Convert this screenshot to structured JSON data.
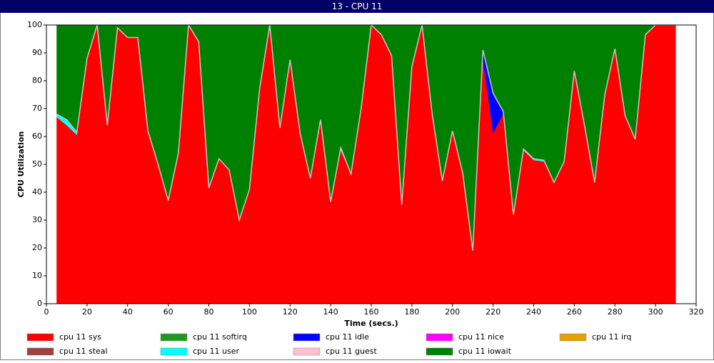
{
  "chart_data": {
    "type": "stacked_area",
    "title": "13 - CPU 11",
    "x_label": "Time (secs.)",
    "y_label": "CPU Utilization",
    "xlim": [
      0,
      320
    ],
    "xticks": [
      0,
      20,
      40,
      60,
      80,
      100,
      120,
      140,
      160,
      180,
      200,
      220,
      240,
      260,
      280,
      300,
      320
    ],
    "ylim": [
      0,
      100
    ],
    "yticks": [
      0,
      10,
      20,
      30,
      40,
      50,
      60,
      70,
      80,
      90,
      100
    ],
    "x": [
      5,
      10,
      15,
      20,
      25,
      30,
      35,
      40,
      45,
      50,
      55,
      60,
      65,
      70,
      75,
      80,
      85,
      90,
      95,
      100,
      105,
      110,
      115,
      120,
      125,
      130,
      135,
      140,
      145,
      150,
      155,
      160,
      165,
      170,
      175,
      180,
      185,
      190,
      195,
      200,
      205,
      210,
      215,
      220,
      225,
      230,
      235,
      240,
      245,
      250,
      255,
      260,
      265,
      270,
      275,
      280,
      285,
      290,
      295,
      300,
      305,
      310
    ],
    "series": [
      {
        "name": "cpu 11 sys",
        "color": "#ff0000",
        "values": [
          67,
          64,
          60.5,
          88,
          100,
          64,
          99,
          95.5,
          95.5,
          62,
          50,
          37,
          54,
          100,
          94,
          41.5,
          52,
          48,
          30,
          41,
          77,
          100,
          63,
          87.5,
          61,
          45,
          66,
          36.5,
          55,
          46.5,
          70,
          100,
          96.5,
          89,
          35.5,
          85,
          100,
          68,
          44,
          62,
          47,
          19,
          87,
          61,
          68,
          32,
          55,
          51.5,
          51,
          43.5,
          51,
          83.5,
          64,
          43.5,
          75,
          91.5,
          67.5,
          59,
          96.5,
          100,
          100,
          100
        ]
      },
      {
        "name": "cpu 11 softirq",
        "color": "#1f9a1f",
        "values": [
          0,
          0,
          0,
          0,
          0,
          0,
          0,
          0,
          0,
          0,
          0,
          0,
          0,
          0,
          0,
          0,
          0,
          0,
          0,
          0,
          0,
          0,
          0,
          0,
          0,
          0,
          0,
          0,
          0,
          0,
          0,
          0,
          0,
          0,
          0,
          0,
          0,
          0,
          0,
          0,
          0,
          0,
          0,
          0,
          0,
          0,
          0,
          0,
          0,
          0,
          0,
          0,
          0,
          0,
          0,
          0,
          0,
          0,
          0,
          0,
          0,
          0
        ]
      },
      {
        "name": "cpu 11 idle",
        "color": "#0000ff",
        "values": [
          0,
          0,
          0,
          0,
          0,
          0,
          0,
          0,
          0,
          0,
          0,
          0,
          0,
          0,
          0,
          0,
          0,
          0,
          0,
          0,
          0,
          0,
          0,
          0,
          0,
          0,
          0,
          0,
          0,
          0,
          0,
          0,
          0,
          0,
          0,
          0,
          0,
          0,
          0,
          0,
          0,
          0,
          4,
          14.5,
          1,
          0,
          0,
          0,
          0,
          0,
          0,
          0,
          0,
          0,
          0,
          0,
          0,
          0,
          0,
          0,
          0,
          0
        ]
      },
      {
        "name": "cpu 11 nice",
        "color": "#ff00ff",
        "values": [
          0,
          0,
          0,
          0,
          0,
          0,
          0,
          0,
          0,
          0,
          0,
          0,
          0,
          0,
          0,
          0,
          0,
          0,
          0,
          0,
          0,
          0,
          0,
          0,
          0,
          0,
          0,
          0,
          0,
          0,
          0,
          0,
          0,
          0,
          0,
          0,
          0,
          0,
          0,
          0,
          0,
          0,
          0,
          0,
          0,
          0,
          0,
          0,
          0,
          0,
          0,
          0,
          0,
          0,
          0,
          0,
          0,
          0,
          0,
          0,
          0,
          0
        ]
      },
      {
        "name": "cpu 11 irq",
        "color": "#e8a000",
        "values": [
          0,
          0,
          0,
          0,
          0,
          0,
          0,
          0,
          0,
          0,
          0,
          0,
          0,
          0,
          0,
          0,
          0,
          0,
          0,
          0,
          0,
          0,
          0,
          0,
          0,
          0,
          0,
          0,
          0,
          0,
          0,
          0,
          0,
          0,
          0,
          0,
          0,
          0,
          0,
          0,
          0,
          0,
          0,
          0,
          0,
          0,
          0,
          0,
          0,
          0,
          0,
          0,
          0,
          0,
          0,
          0,
          0,
          0,
          0,
          0,
          0,
          0
        ]
      },
      {
        "name": "cpu 11 steal",
        "color": "#a04040",
        "values": [
          0,
          0,
          0,
          0,
          0,
          0,
          0,
          0,
          0,
          0,
          0,
          0,
          0,
          0,
          0,
          0,
          0,
          0,
          0,
          0,
          0,
          0,
          0,
          0,
          0,
          0,
          0,
          0,
          0,
          0,
          0,
          0,
          0,
          0,
          0,
          0,
          0,
          0,
          0,
          0,
          0,
          0,
          0,
          0,
          0,
          0,
          0,
          0,
          0,
          0,
          0,
          0,
          0,
          0,
          0,
          0,
          0,
          0,
          0,
          0,
          0,
          0
        ]
      },
      {
        "name": "cpu 11 user",
        "color": "#00ffff",
        "values": [
          1,
          2,
          1,
          0,
          0,
          0,
          0,
          0,
          0,
          0,
          0,
          0,
          0,
          0,
          0,
          0,
          0,
          0,
          0,
          0,
          0,
          0,
          0,
          0,
          0,
          0,
          0,
          0,
          1,
          0,
          0,
          0,
          0,
          0,
          0,
          0,
          0,
          0,
          0,
          0,
          0,
          0,
          0,
          0,
          0,
          0,
          0.5,
          0.5,
          0.5,
          0,
          0,
          0,
          0,
          0,
          0,
          0,
          0,
          0,
          0,
          0,
          0,
          0
        ]
      },
      {
        "name": "cpu 11 guest",
        "color": "#ffc0cb",
        "values": [
          0,
          0,
          0,
          0,
          0,
          0,
          0,
          0,
          0,
          0,
          0,
          0,
          0,
          0,
          0,
          0,
          0,
          0,
          0,
          0,
          0,
          0,
          0,
          0,
          0,
          0,
          0,
          0,
          0,
          0,
          0,
          0,
          0,
          0,
          0,
          0,
          0,
          0,
          0,
          0,
          0,
          0,
          0,
          0,
          0,
          0,
          0,
          0,
          0,
          0,
          0,
          0,
          0,
          0,
          0,
          0,
          0,
          0,
          0,
          0,
          0,
          0
        ]
      },
      {
        "name": "cpu 11 iowait",
        "color": "#008000",
        "values": [
          32,
          34,
          38.5,
          12,
          0,
          36,
          1,
          4.5,
          4.5,
          38,
          50,
          63,
          46,
          0,
          6,
          58.5,
          48,
          52,
          70,
          59,
          23,
          0,
          37,
          12.5,
          39,
          55,
          34,
          63.5,
          44,
          53.5,
          30,
          0,
          3.5,
          11,
          64.5,
          15,
          0,
          32,
          56,
          38,
          53,
          81,
          9,
          24.5,
          31,
          68,
          44.5,
          48,
          48.5,
          56.5,
          49,
          16.5,
          36,
          56.5,
          25,
          8.5,
          32.5,
          41,
          3.5,
          0,
          0,
          0
        ]
      }
    ]
  }
}
